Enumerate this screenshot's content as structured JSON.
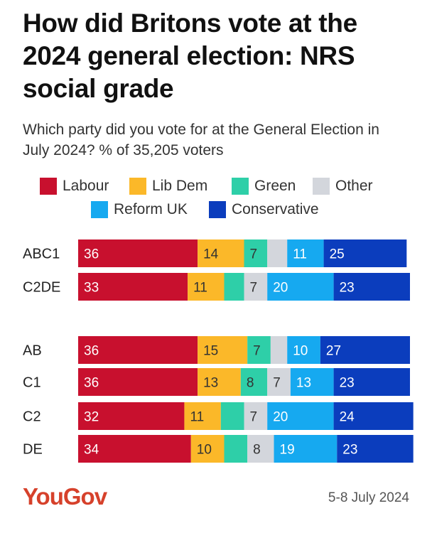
{
  "title": "How did Britons vote at the 2024 general election: NRS social grade",
  "subtitle": "Which party did you vote for at the General Election in July 2024? % of 35,205 voters",
  "legend": [
    {
      "name": "Labour",
      "color": "#c8102e"
    },
    {
      "name": "Lib Dem",
      "color": "#fbb829"
    },
    {
      "name": "Green",
      "color": "#2ecfa8"
    },
    {
      "name": "Other",
      "color": "#d3d6dc"
    },
    {
      "name": "Reform UK",
      "color": "#16a9f0"
    },
    {
      "name": "Conservative",
      "color": "#0b3dbd"
    }
  ],
  "chart_data": {
    "type": "bar",
    "orientation": "horizontal",
    "stacked": true,
    "categories": [
      "ABC1",
      "C2DE",
      "AB",
      "C1",
      "C2",
      "DE"
    ],
    "series": [
      {
        "name": "Labour",
        "color": "#c8102e",
        "values": [
          36,
          33,
          36,
          36,
          32,
          34
        ],
        "labels": [
          "36",
          "33",
          "36",
          "36",
          "32",
          "34"
        ]
      },
      {
        "name": "Lib Dem",
        "color": "#fbb829",
        "values": [
          14,
          11,
          15,
          13,
          11,
          10
        ],
        "labels": [
          "14",
          "11",
          "15",
          "13",
          "11",
          "10"
        ]
      },
      {
        "name": "Green",
        "color": "#2ecfa8",
        "values": [
          7,
          6,
          7,
          8,
          7,
          7
        ],
        "labels": [
          "7",
          "",
          "7",
          "8",
          "",
          ""
        ]
      },
      {
        "name": "Other",
        "color": "#d3d6dc",
        "values": [
          6,
          7,
          5,
          7,
          7,
          8
        ],
        "labels": [
          "",
          "7",
          "",
          "7",
          "7",
          "8"
        ]
      },
      {
        "name": "Reform UK",
        "color": "#16a9f0",
        "values": [
          11,
          20,
          10,
          13,
          20,
          19
        ],
        "labels": [
          "11",
          "20",
          "10",
          "13",
          "20",
          "19"
        ]
      },
      {
        "name": "Conservative",
        "color": "#0b3dbd",
        "values": [
          25,
          23,
          27,
          23,
          24,
          23
        ],
        "labels": [
          "25",
          "23",
          "27",
          "23",
          "24",
          "23"
        ]
      }
    ],
    "xlim": [
      0,
      100
    ],
    "grid": false,
    "legend_position": "top"
  },
  "footer": {
    "logo_text": "YouGov",
    "logo_color": "#d6412b",
    "date": "5-8 July 2024"
  }
}
